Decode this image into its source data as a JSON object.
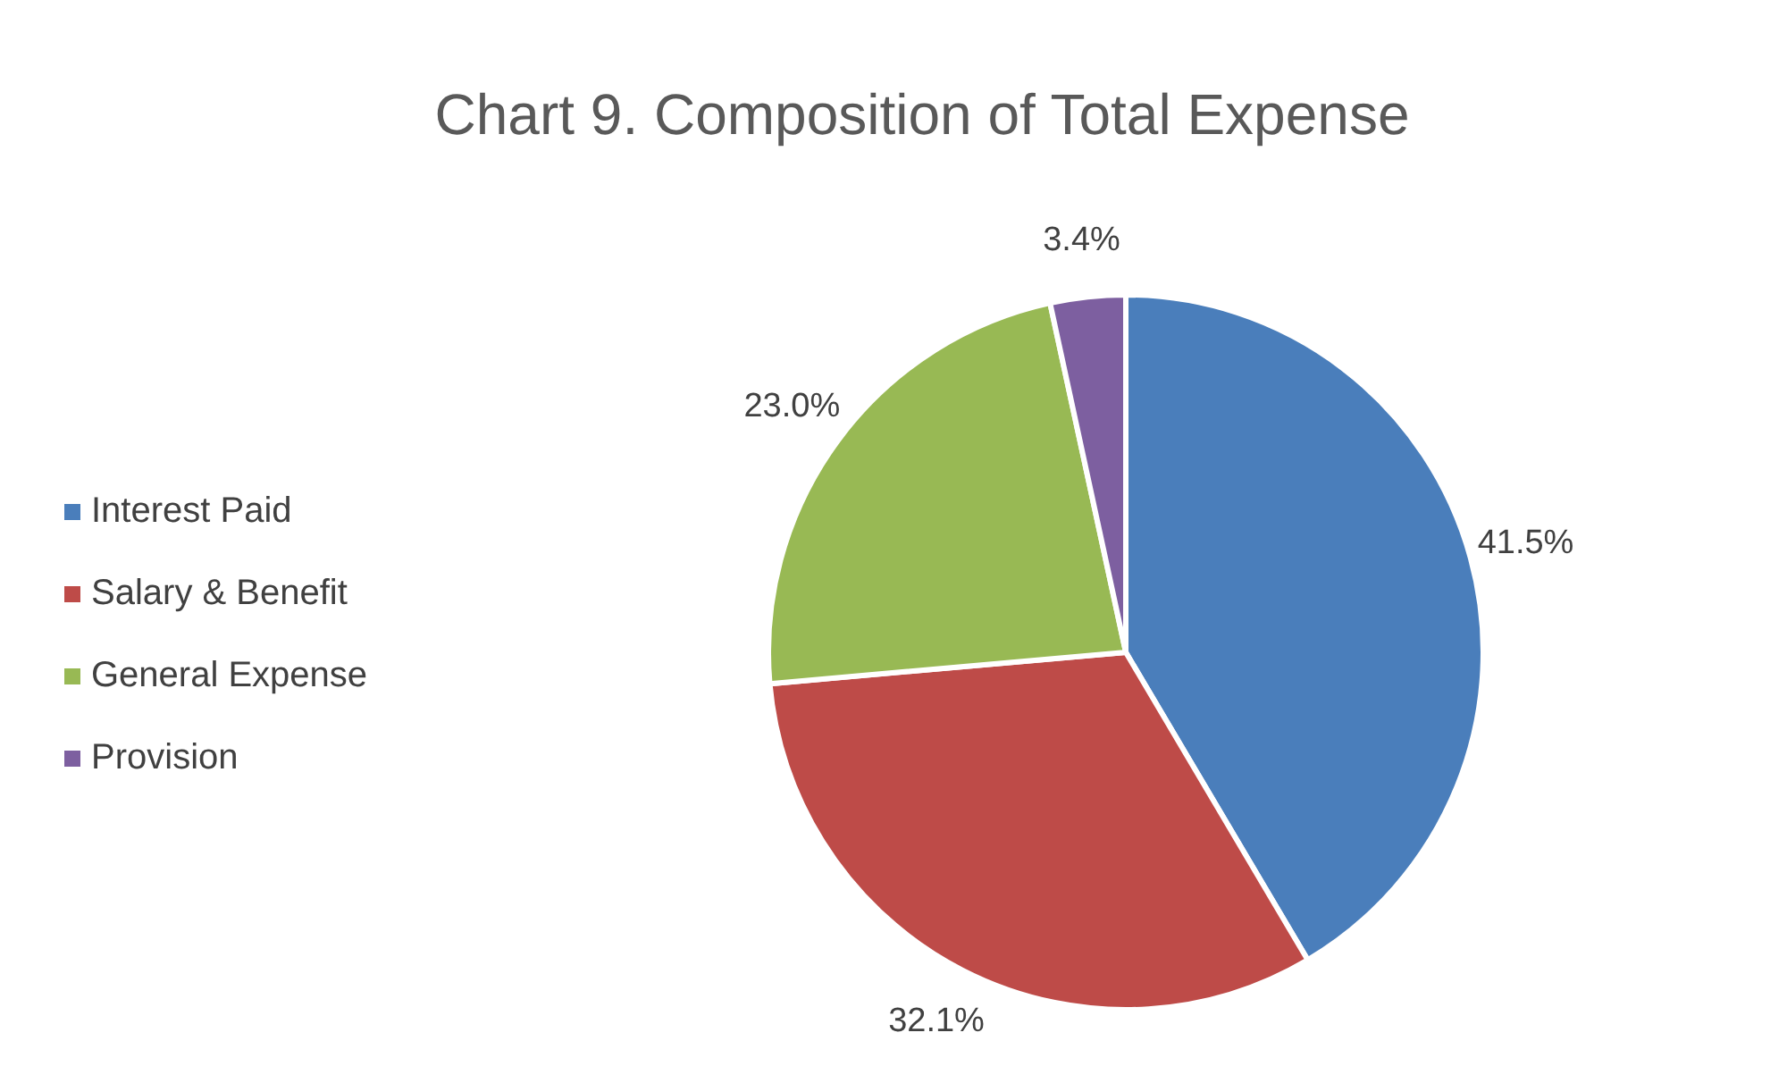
{
  "chart_data": {
    "type": "pie",
    "title": "Chart 9. Composition of Total Expense",
    "categories": [
      "Interest Paid",
      "Salary & Benefit",
      "General Expense",
      "Provision"
    ],
    "values": [
      41.5,
      32.1,
      23.0,
      3.4
    ],
    "value_labels": [
      "41.5%",
      "32.1%",
      "23.0%",
      "3.4%"
    ],
    "colors": [
      "#4a7ebb",
      "#be4b48",
      "#98b954",
      "#7d5fa0"
    ],
    "legend": "left"
  }
}
